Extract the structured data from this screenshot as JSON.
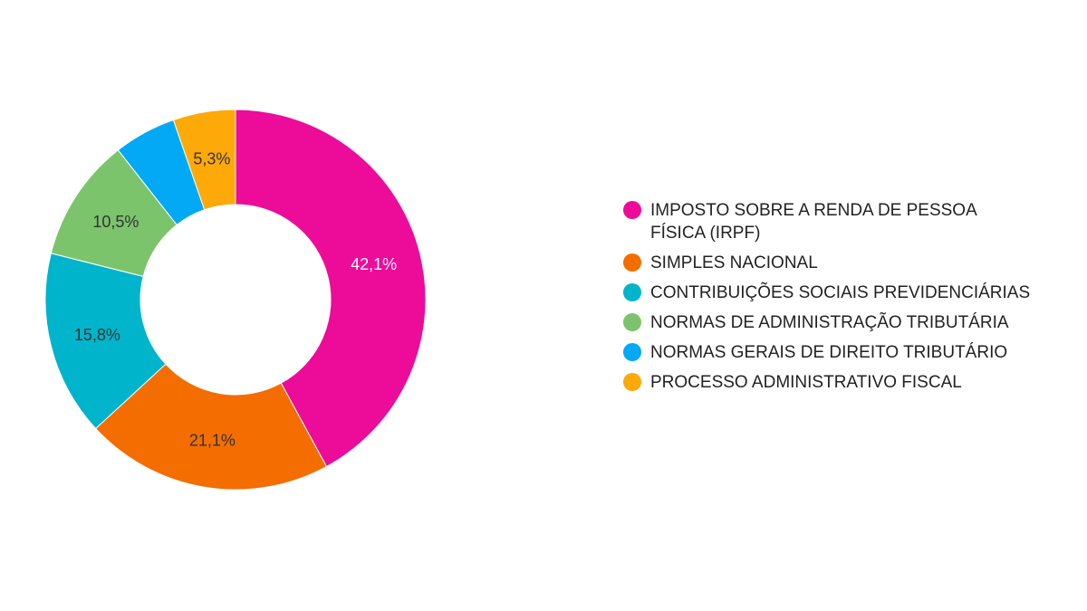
{
  "chart_data": {
    "type": "pie",
    "variant": "donut",
    "title": "",
    "legend_position": "right",
    "slices": [
      {
        "label": "IMPOSTO SOBRE A RENDA DE PESSOA FÍSICA (IRPF)",
        "value": 42.1,
        "display": "42,1%",
        "color": "#ec0c99",
        "label_color": "#ffffff"
      },
      {
        "label": "SIMPLES NACIONAL",
        "value": 21.1,
        "display": "21,1%",
        "color": "#f46d00",
        "label_color": "#333333"
      },
      {
        "label": "CONTRIBUIÇÕES SOCIAIS PREVIDENCIÁRIAS",
        "value": 15.8,
        "display": "15,8%",
        "color": "#00b4cb",
        "label_color": "#333333"
      },
      {
        "label": "NORMAS DE ADMINISTRAÇÃO TRIBUTÁRIA",
        "value": 10.5,
        "display": "10,5%",
        "color": "#7cc46b",
        "label_color": "#333333"
      },
      {
        "label": "NORMAS GERAIS DE DIREITO TRIBUTÁRIO",
        "value": 5.3,
        "display": "",
        "color": "#03a9f4",
        "label_color": "#333333"
      },
      {
        "label": "PROCESSO ADMINISTRATIVO FISCAL",
        "value": 5.3,
        "display": "5,3%",
        "color": "#fda90a",
        "label_color": "#333333"
      }
    ]
  }
}
